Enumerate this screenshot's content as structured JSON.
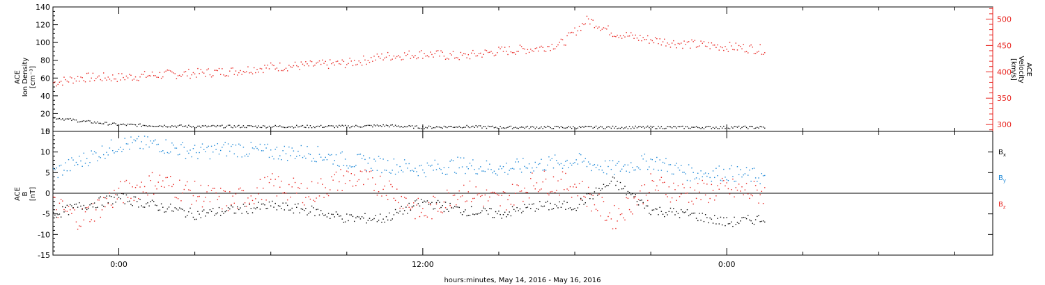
{
  "chart_data": [
    {
      "type": "scatter",
      "title": "",
      "ylabel": [
        "ACE",
        "Ion Density",
        "[cm⁻³]"
      ],
      "ylim": [
        0,
        140
      ],
      "yticks": [
        0,
        20,
        40,
        60,
        80,
        100,
        120,
        140
      ],
      "y2label": [
        "ACE",
        "Velocity",
        "[km/s]"
      ],
      "y2lim": [
        287,
        523
      ],
      "y2ticks": [
        300,
        350,
        400,
        450,
        500
      ],
      "colors": {
        "density": "#000000",
        "velocity": "#e8221d"
      },
      "series": [
        {
          "axis": "left",
          "x_hours": [
            -2.6,
            -1.5,
            0.0,
            1.5,
            3.0,
            4.5,
            6.0,
            7.5,
            9.0,
            10.5,
            12.0,
            13.5,
            15.0,
            16.5,
            18.0,
            19.5,
            21.0,
            22.5,
            24.0,
            25.5
          ],
          "values": [
            16,
            12,
            8,
            7,
            6,
            6,
            6,
            6,
            6,
            7,
            5,
            6,
            5,
            5,
            5,
            5,
            5,
            5,
            5,
            5
          ]
        },
        {
          "axis": "right",
          "x_hours": [
            -2.6,
            -1.5,
            0.0,
            1.5,
            3.0,
            4.5,
            6.0,
            7.5,
            9.0,
            10.5,
            12.0,
            13.5,
            15.0,
            16.5,
            17.5,
            18.5,
            19.5,
            20.5,
            22.0,
            23.5,
            25.0,
            25.5
          ],
          "values": [
            380,
            390,
            390,
            395,
            398,
            402,
            410,
            413,
            417,
            430,
            435,
            430,
            440,
            445,
            455,
            500,
            475,
            465,
            455,
            450,
            445,
            442
          ]
        }
      ]
    },
    {
      "type": "scatter",
      "title": "",
      "ylabel": [
        "ACE",
        "B",
        "[nT]"
      ],
      "ylim": [
        -15,
        15
      ],
      "yticks": [
        -15,
        -10,
        -5,
        0,
        5,
        10,
        15
      ],
      "xlabel": "hours:minutes, May 14, 2016 - May 16, 2016",
      "xticks": [
        {
          "hour": 0,
          "label": "0:00"
        },
        {
          "hour": 12,
          "label": "12:00"
        },
        {
          "hour": 24,
          "label": "0:00"
        }
      ],
      "xlim_hours": [
        -2.6,
        34.5
      ],
      "colors": {
        "Bx": "#000000",
        "By": "#1a86d6",
        "Bz": "#e8221d"
      },
      "legend": {
        "placement": "right",
        "entries": [
          {
            "main": "B",
            "sub": "x",
            "color": "#000000"
          },
          {
            "main": "B",
            "sub": "y",
            "color": "#1a86d6"
          },
          {
            "main": "B",
            "sub": "z",
            "color": "#e8221d"
          }
        ]
      },
      "series": [
        {
          "name": "Bx",
          "x_hours": [
            -2.6,
            -1.5,
            0.0,
            1.5,
            3.0,
            4.5,
            6.0,
            7.5,
            9.0,
            10.5,
            12.0,
            13.5,
            15.0,
            16.5,
            18.0,
            19.5,
            21.0,
            22.5,
            24.0,
            25.5
          ],
          "values": [
            -5,
            -3,
            -1,
            -3,
            -5,
            -4,
            -3,
            -4,
            -6,
            -6,
            -2,
            -4,
            -5,
            -3,
            -3,
            3,
            -4,
            -5,
            -7,
            -6
          ]
        },
        {
          "name": "By",
          "x_hours": [
            -2.6,
            -1.5,
            0.0,
            1.5,
            3.0,
            4.5,
            6.0,
            7.5,
            9.0,
            10.5,
            12.0,
            13.5,
            15.0,
            16.5,
            18.0,
            19.5,
            21.0,
            22.5,
            24.0,
            25.5
          ],
          "values": [
            5,
            8,
            12,
            12,
            10,
            11,
            10,
            10,
            8,
            7,
            6,
            7,
            6,
            7,
            8,
            6,
            8,
            5,
            5,
            4
          ]
        },
        {
          "name": "Bz",
          "x_hours": [
            -2.6,
            -1.5,
            0.0,
            1.5,
            3.0,
            4.5,
            6.0,
            7.5,
            9.0,
            10.5,
            12.0,
            13.5,
            15.0,
            16.5,
            18.0,
            19.5,
            21.0,
            22.5,
            24.0,
            25.5
          ],
          "values": [
            -3,
            -6,
            0,
            3,
            0,
            -2,
            2,
            0,
            4,
            2,
            -5,
            1,
            -2,
            3,
            2,
            -6,
            2,
            0,
            1,
            0
          ]
        }
      ]
    }
  ]
}
